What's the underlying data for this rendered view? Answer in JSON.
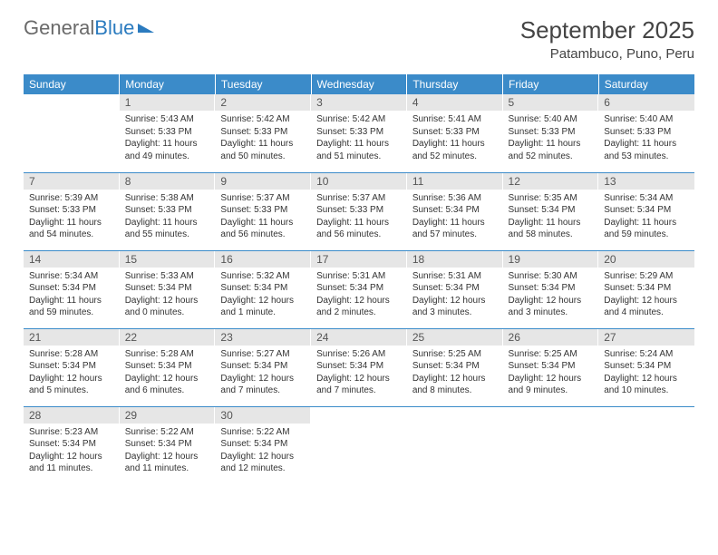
{
  "logo": {
    "part1": "General",
    "part2": "Blue"
  },
  "title": "September 2025",
  "location": "Patambuco, Puno, Peru",
  "day_headers": [
    "Sunday",
    "Monday",
    "Tuesday",
    "Wednesday",
    "Thursday",
    "Friday",
    "Saturday"
  ],
  "colors": {
    "header_bg": "#3b8bc9",
    "header_text": "#ffffff",
    "daynum_bg": "#e6e6e6",
    "row_border": "#3b8bc9",
    "logo_gray": "#6a6a6a",
    "logo_blue": "#2b7bbf"
  },
  "weeks": [
    [
      {
        "num": "",
        "lines": []
      },
      {
        "num": "1",
        "lines": [
          "Sunrise: 5:43 AM",
          "Sunset: 5:33 PM",
          "Daylight: 11 hours",
          "and 49 minutes."
        ]
      },
      {
        "num": "2",
        "lines": [
          "Sunrise: 5:42 AM",
          "Sunset: 5:33 PM",
          "Daylight: 11 hours",
          "and 50 minutes."
        ]
      },
      {
        "num": "3",
        "lines": [
          "Sunrise: 5:42 AM",
          "Sunset: 5:33 PM",
          "Daylight: 11 hours",
          "and 51 minutes."
        ]
      },
      {
        "num": "4",
        "lines": [
          "Sunrise: 5:41 AM",
          "Sunset: 5:33 PM",
          "Daylight: 11 hours",
          "and 52 minutes."
        ]
      },
      {
        "num": "5",
        "lines": [
          "Sunrise: 5:40 AM",
          "Sunset: 5:33 PM",
          "Daylight: 11 hours",
          "and 52 minutes."
        ]
      },
      {
        "num": "6",
        "lines": [
          "Sunrise: 5:40 AM",
          "Sunset: 5:33 PM",
          "Daylight: 11 hours",
          "and 53 minutes."
        ]
      }
    ],
    [
      {
        "num": "7",
        "lines": [
          "Sunrise: 5:39 AM",
          "Sunset: 5:33 PM",
          "Daylight: 11 hours",
          "and 54 minutes."
        ]
      },
      {
        "num": "8",
        "lines": [
          "Sunrise: 5:38 AM",
          "Sunset: 5:33 PM",
          "Daylight: 11 hours",
          "and 55 minutes."
        ]
      },
      {
        "num": "9",
        "lines": [
          "Sunrise: 5:37 AM",
          "Sunset: 5:33 PM",
          "Daylight: 11 hours",
          "and 56 minutes."
        ]
      },
      {
        "num": "10",
        "lines": [
          "Sunrise: 5:37 AM",
          "Sunset: 5:33 PM",
          "Daylight: 11 hours",
          "and 56 minutes."
        ]
      },
      {
        "num": "11",
        "lines": [
          "Sunrise: 5:36 AM",
          "Sunset: 5:34 PM",
          "Daylight: 11 hours",
          "and 57 minutes."
        ]
      },
      {
        "num": "12",
        "lines": [
          "Sunrise: 5:35 AM",
          "Sunset: 5:34 PM",
          "Daylight: 11 hours",
          "and 58 minutes."
        ]
      },
      {
        "num": "13",
        "lines": [
          "Sunrise: 5:34 AM",
          "Sunset: 5:34 PM",
          "Daylight: 11 hours",
          "and 59 minutes."
        ]
      }
    ],
    [
      {
        "num": "14",
        "lines": [
          "Sunrise: 5:34 AM",
          "Sunset: 5:34 PM",
          "Daylight: 11 hours",
          "and 59 minutes."
        ]
      },
      {
        "num": "15",
        "lines": [
          "Sunrise: 5:33 AM",
          "Sunset: 5:34 PM",
          "Daylight: 12 hours",
          "and 0 minutes."
        ]
      },
      {
        "num": "16",
        "lines": [
          "Sunrise: 5:32 AM",
          "Sunset: 5:34 PM",
          "Daylight: 12 hours",
          "and 1 minute."
        ]
      },
      {
        "num": "17",
        "lines": [
          "Sunrise: 5:31 AM",
          "Sunset: 5:34 PM",
          "Daylight: 12 hours",
          "and 2 minutes."
        ]
      },
      {
        "num": "18",
        "lines": [
          "Sunrise: 5:31 AM",
          "Sunset: 5:34 PM",
          "Daylight: 12 hours",
          "and 3 minutes."
        ]
      },
      {
        "num": "19",
        "lines": [
          "Sunrise: 5:30 AM",
          "Sunset: 5:34 PM",
          "Daylight: 12 hours",
          "and 3 minutes."
        ]
      },
      {
        "num": "20",
        "lines": [
          "Sunrise: 5:29 AM",
          "Sunset: 5:34 PM",
          "Daylight: 12 hours",
          "and 4 minutes."
        ]
      }
    ],
    [
      {
        "num": "21",
        "lines": [
          "Sunrise: 5:28 AM",
          "Sunset: 5:34 PM",
          "Daylight: 12 hours",
          "and 5 minutes."
        ]
      },
      {
        "num": "22",
        "lines": [
          "Sunrise: 5:28 AM",
          "Sunset: 5:34 PM",
          "Daylight: 12 hours",
          "and 6 minutes."
        ]
      },
      {
        "num": "23",
        "lines": [
          "Sunrise: 5:27 AM",
          "Sunset: 5:34 PM",
          "Daylight: 12 hours",
          "and 7 minutes."
        ]
      },
      {
        "num": "24",
        "lines": [
          "Sunrise: 5:26 AM",
          "Sunset: 5:34 PM",
          "Daylight: 12 hours",
          "and 7 minutes."
        ]
      },
      {
        "num": "25",
        "lines": [
          "Sunrise: 5:25 AM",
          "Sunset: 5:34 PM",
          "Daylight: 12 hours",
          "and 8 minutes."
        ]
      },
      {
        "num": "26",
        "lines": [
          "Sunrise: 5:25 AM",
          "Sunset: 5:34 PM",
          "Daylight: 12 hours",
          "and 9 minutes."
        ]
      },
      {
        "num": "27",
        "lines": [
          "Sunrise: 5:24 AM",
          "Sunset: 5:34 PM",
          "Daylight: 12 hours",
          "and 10 minutes."
        ]
      }
    ],
    [
      {
        "num": "28",
        "lines": [
          "Sunrise: 5:23 AM",
          "Sunset: 5:34 PM",
          "Daylight: 12 hours",
          "and 11 minutes."
        ]
      },
      {
        "num": "29",
        "lines": [
          "Sunrise: 5:22 AM",
          "Sunset: 5:34 PM",
          "Daylight: 12 hours",
          "and 11 minutes."
        ]
      },
      {
        "num": "30",
        "lines": [
          "Sunrise: 5:22 AM",
          "Sunset: 5:34 PM",
          "Daylight: 12 hours",
          "and 12 minutes."
        ]
      },
      {
        "num": "",
        "lines": []
      },
      {
        "num": "",
        "lines": []
      },
      {
        "num": "",
        "lines": []
      },
      {
        "num": "",
        "lines": []
      }
    ]
  ]
}
